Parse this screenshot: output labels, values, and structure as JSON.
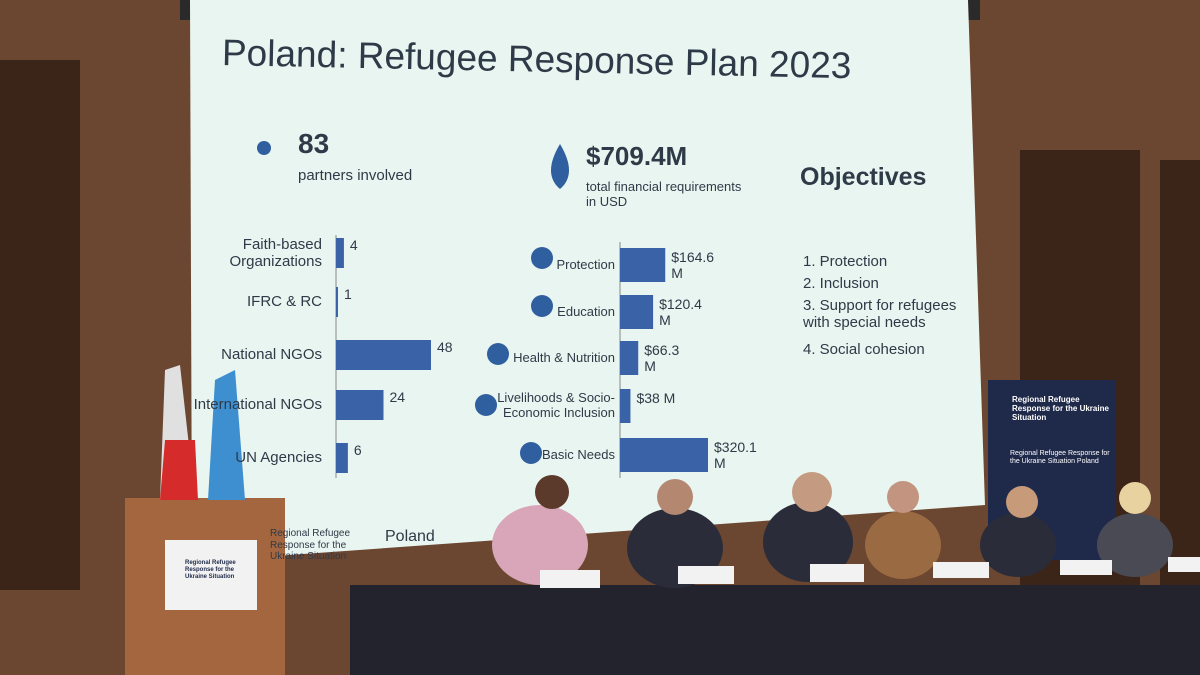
{
  "slide": {
    "title": "Poland: Refugee Response Plan 2023",
    "partners_count": "83",
    "partners_caption": "partners involved",
    "funding_total": "$709.4M",
    "funding_caption": "total financial requirements in USD",
    "objectives_heading": "Objectives",
    "objectives": [
      "1. Protection",
      "2. Inclusion",
      "3. Support for refugees with special needs",
      "4. Social cohesion"
    ],
    "footer_logo": "Regional Refugee Response for the Ukraine Situation",
    "footer_country": "Poland"
  },
  "chart_data": [
    {
      "type": "hbar",
      "color": "#3a62a7",
      "categories": [
        "Faith-based Organizations",
        "IFRC & RC",
        "National NGOs",
        "International NGOs",
        "UN Agencies"
      ],
      "values": [
        4,
        1,
        48,
        24,
        6
      ]
    },
    {
      "type": "hbar",
      "color": "#3a62a7",
      "categories": [
        "Protection",
        "Education",
        "Health & Nutrition",
        "Livelihoods & Socio-Economic Inclusion",
        "Basic Needs"
      ],
      "values": [
        164.6,
        120.4,
        66.3,
        38,
        320.1
      ],
      "value_labels": [
        "$164.6 M",
        "$120.4 M",
        "$66.3 M",
        "$38 M",
        "$320.1 M"
      ]
    }
  ],
  "banner": {
    "logo": "Regional Refugee Response for the Ukraine Situation",
    "subtitle": "Regional Refugee Response for the Ukraine Situation Poland"
  },
  "podium": {
    "logo": "Regional Refugee Response for the Ukraine Situation"
  }
}
